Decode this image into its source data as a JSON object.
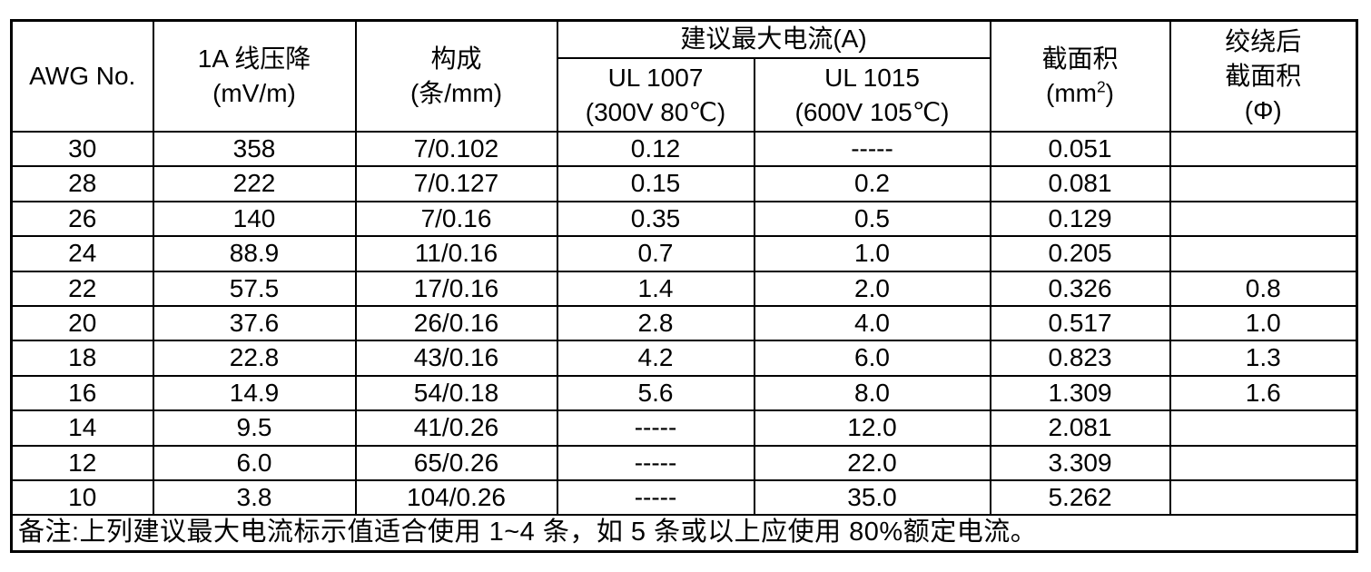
{
  "colors": {
    "background": "#ffffff",
    "border": "#000000",
    "text": "#000000"
  },
  "table": {
    "header": {
      "awg": "AWG No.",
      "voltage_drop_line1": "1A 线压降",
      "voltage_drop_line2": "(mV/m)",
      "construction_line1": "构成",
      "construction_line2": "(条/mm)",
      "max_current_group": "建议最大电流(A)",
      "ul1007_line1": "UL 1007",
      "ul1007_line2": "(300V 80℃)",
      "ul1015_line1": "UL 1015",
      "ul1015_line2": "(600V 105℃)",
      "cross_section_line1": "截面积",
      "cross_section_line2_base": "(mm",
      "cross_section_sup": "2",
      "cross_section_close": ")",
      "twisted_line1": "绞绕后",
      "twisted_line2": "截面积",
      "twisted_line3": "(Φ)"
    },
    "rows": [
      [
        "30",
        "358",
        "7/0.102",
        "0.12",
        "-----",
        "0.051",
        ""
      ],
      [
        "28",
        "222",
        "7/0.127",
        "0.15",
        "0.2",
        "0.081",
        ""
      ],
      [
        "26",
        "140",
        "7/0.16",
        "0.35",
        "0.5",
        "0.129",
        ""
      ],
      [
        "24",
        "88.9",
        "11/0.16",
        "0.7",
        "1.0",
        "0.205",
        ""
      ],
      [
        "22",
        "57.5",
        "17/0.16",
        "1.4",
        "2.0",
        "0.326",
        "0.8"
      ],
      [
        "20",
        "37.6",
        "26/0.16",
        "2.8",
        "4.0",
        "0.517",
        "1.0"
      ],
      [
        "18",
        "22.8",
        "43/0.16",
        "4.2",
        "6.0",
        "0.823",
        "1.3"
      ],
      [
        "16",
        "14.9",
        "54/0.18",
        "5.6",
        "8.0",
        "1.309",
        "1.6"
      ],
      [
        "14",
        "9.5",
        "41/0.26",
        "-----",
        "12.0",
        "2.081",
        ""
      ],
      [
        "12",
        "6.0",
        "65/0.26",
        "-----",
        "22.0",
        "3.309",
        ""
      ],
      [
        "10",
        "3.8",
        "104/0.26",
        "-----",
        "35.0",
        "5.262",
        ""
      ]
    ],
    "note": "备注:上列建议最大电流标示值适合使用 1~4 条，如 5 条或以上应使用 80%额定电流。"
  }
}
